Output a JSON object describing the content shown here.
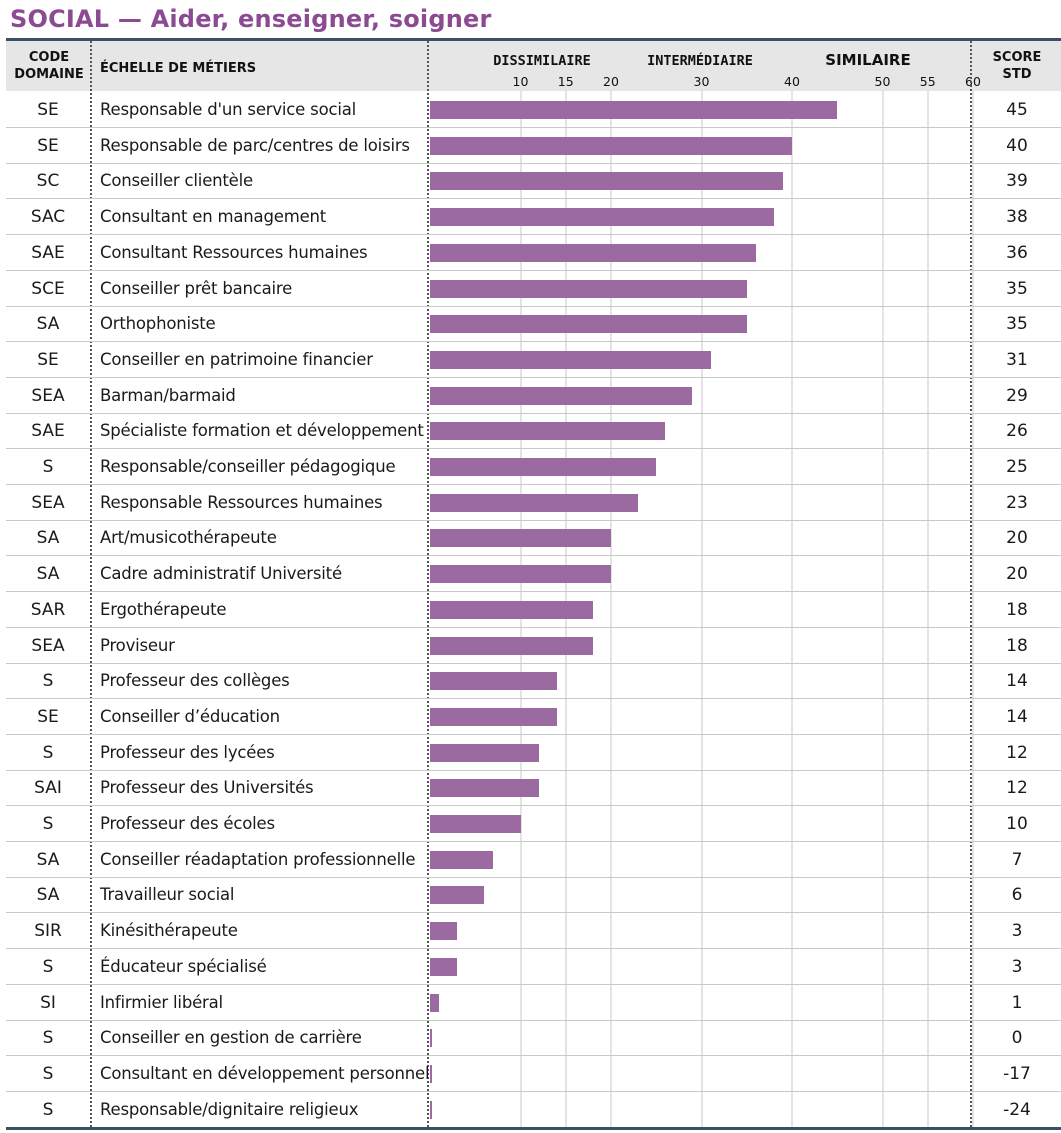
{
  "title": "SOCIAL — Aider, enseigner, soigner",
  "header": {
    "code_line1": "CODE",
    "code_line2": "DOMAINE",
    "name": "ÉCHELLE DE MÉTIERS",
    "score_line1": "SCORE",
    "score_line2": "STD"
  },
  "colors": {
    "title": "#8c4a92",
    "bar": "#9b6aa0",
    "rule": "#3b5163",
    "header_band": "#e6e6e6"
  },
  "chart_data": {
    "type": "bar",
    "orientation": "horizontal",
    "title": "SOCIAL — Aider, enseigner, soigner",
    "zones": [
      "DISSIMILAIRE",
      "INTERMÉDIAIRE",
      "SIMILAIRE"
    ],
    "xticks": [
      10,
      15,
      20,
      30,
      40,
      50,
      55,
      60
    ],
    "gridlines_at": [
      10,
      15,
      20,
      30,
      40,
      50,
      55,
      60
    ],
    "xlim": [
      0,
      70
    ],
    "grid": true,
    "rows": [
      {
        "code": "SE",
        "name": "Responsable d'un service social",
        "score": 45
      },
      {
        "code": "SE",
        "name": "Responsable de parc/centres de loisirs",
        "score": 40
      },
      {
        "code": "SC",
        "name": "Conseiller clientèle",
        "score": 39
      },
      {
        "code": "SAC",
        "name": "Consultant en management",
        "score": 38
      },
      {
        "code": "SAE",
        "name": "Consultant Ressources humaines",
        "score": 36
      },
      {
        "code": "SCE",
        "name": "Conseiller prêt bancaire",
        "score": 35
      },
      {
        "code": "SA",
        "name": "Orthophoniste",
        "score": 35
      },
      {
        "code": "SE",
        "name": "Conseiller en patrimoine financier",
        "score": 31
      },
      {
        "code": "SEA",
        "name": "Barman/barmaid",
        "score": 29
      },
      {
        "code": "SAE",
        "name": "Spécialiste formation et développement",
        "score": 26
      },
      {
        "code": "S",
        "name": "Responsable/conseiller pédagogique",
        "score": 25
      },
      {
        "code": "SEA",
        "name": "Responsable Ressources humaines",
        "score": 23
      },
      {
        "code": "SA",
        "name": "Art/musicothérapeute",
        "score": 20
      },
      {
        "code": "SA",
        "name": "Cadre administratif Université",
        "score": 20
      },
      {
        "code": "SAR",
        "name": "Ergothérapeute",
        "score": 18
      },
      {
        "code": "SEA",
        "name": "Proviseur",
        "score": 18
      },
      {
        "code": "S",
        "name": "Professeur des collèges",
        "score": 14
      },
      {
        "code": "SE",
        "name": "Conseiller d’éducation",
        "score": 14
      },
      {
        "code": "S",
        "name": "Professeur des lycées",
        "score": 12
      },
      {
        "code": "SAI",
        "name": "Professeur des Universités",
        "score": 12
      },
      {
        "code": "S",
        "name": "Professeur des écoles",
        "score": 10
      },
      {
        "code": "SA",
        "name": "Conseiller réadaptation professionnelle",
        "score": 7
      },
      {
        "code": "SA",
        "name": "Travailleur social",
        "score": 6
      },
      {
        "code": "SIR",
        "name": "Kinésithérapeute",
        "score": 3
      },
      {
        "code": "S",
        "name": "Éducateur spécialisé",
        "score": 3
      },
      {
        "code": "SI",
        "name": "Infirmier libéral",
        "score": 1
      },
      {
        "code": "S",
        "name": "Conseiller en gestion de carrière",
        "score": 0
      },
      {
        "code": "S",
        "name": "Consultant en développement personnel",
        "score": -17
      },
      {
        "code": "S",
        "name": "Responsable/dignitaire religieux",
        "score": -24
      }
    ]
  }
}
